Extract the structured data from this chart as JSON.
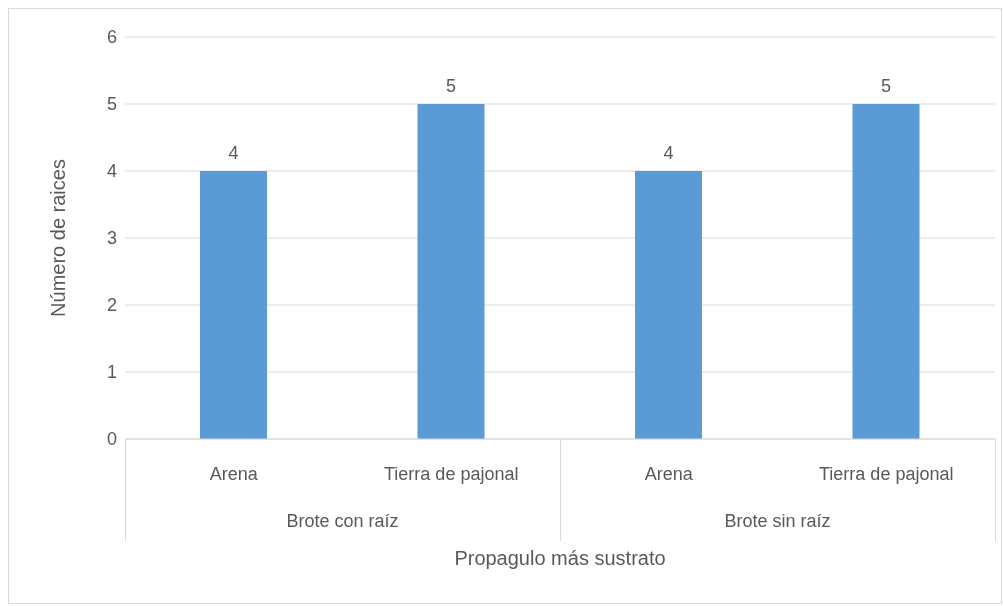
{
  "chart_data": {
    "type": "bar",
    "xlabel": "Propagulo más sustrato",
    "ylabel": "Número de raices",
    "categories": [
      "Arena",
      "Tierra de pajonal",
      "Arena",
      "Tierra de pajonal"
    ],
    "values": [
      4,
      5,
      4,
      5
    ],
    "color": "#5b9bd5",
    "data_labels": true,
    "ylim": [
      0,
      6
    ],
    "yticks": [
      0,
      1,
      2,
      3,
      4,
      5,
      6
    ],
    "grid": "y",
    "annotations": [
      "Brote con raíz",
      "Brote sin raíz"
    ]
  }
}
